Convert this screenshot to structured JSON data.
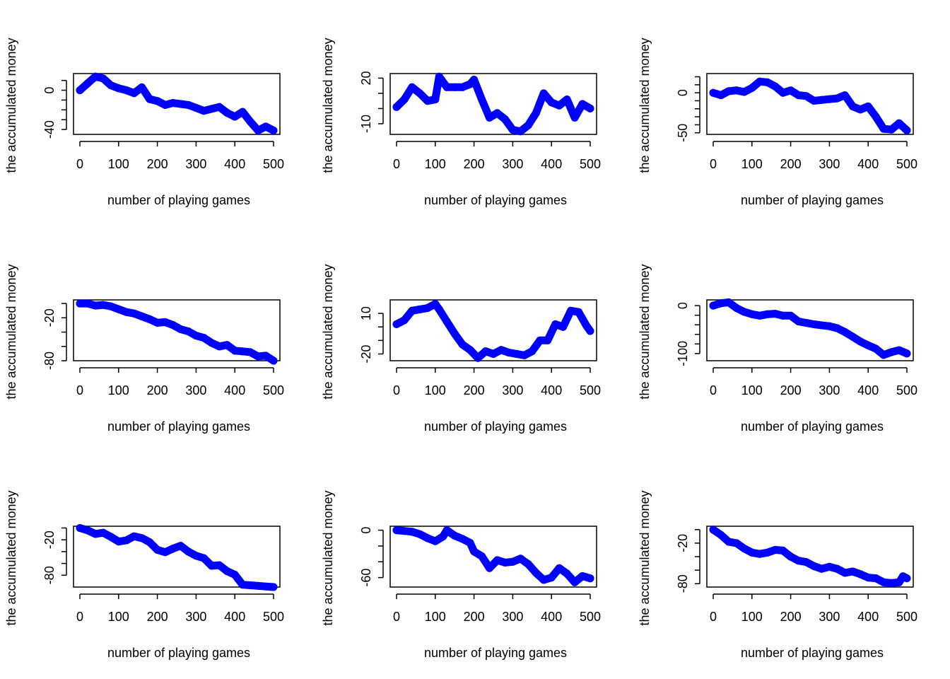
{
  "figure": {
    "series_color": "#0000ff",
    "axis_color": "#000000"
  },
  "chart_data": [
    {
      "type": "line",
      "xlabel": "number of playing games",
      "ylabel": "the accumulated money",
      "xlim": [
        0,
        500
      ],
      "ylim": [
        -45,
        17
      ],
      "x_ticks": [
        0,
        100,
        200,
        300,
        400,
        500
      ],
      "y_ticks": [
        -40,
        -30,
        -20,
        -10,
        0,
        10
      ],
      "y_tick_labels": [
        "-40",
        "",
        "",
        "",
        "0",
        ""
      ],
      "x": [
        0,
        20,
        40,
        60,
        80,
        100,
        120,
        140,
        160,
        180,
        200,
        220,
        240,
        260,
        280,
        300,
        320,
        340,
        360,
        380,
        400,
        420,
        440,
        460,
        480,
        500
      ],
      "y": [
        0,
        7,
        14,
        12,
        5,
        2,
        0,
        -3,
        3,
        -9,
        -11,
        -15,
        -13,
        -14,
        -15,
        -18,
        -21,
        -19,
        -17,
        -23,
        -27,
        -22,
        -32,
        -41,
        -37,
        -41
      ]
    },
    {
      "type": "line",
      "xlabel": "number of playing games",
      "ylabel": "the accumulated money",
      "xlim": [
        0,
        500
      ],
      "ylim": [
        -17,
        23
      ],
      "x_ticks": [
        0,
        100,
        200,
        300,
        400,
        500
      ],
      "y_ticks": [
        -10,
        0,
        10,
        20
      ],
      "y_tick_labels": [
        "-10",
        "",
        "",
        "20"
      ],
      "x": [
        0,
        20,
        40,
        60,
        80,
        100,
        110,
        130,
        150,
        170,
        190,
        200,
        220,
        240,
        260,
        280,
        300,
        320,
        340,
        360,
        380,
        400,
        420,
        440,
        460,
        480,
        500
      ],
      "y": [
        1,
        6,
        14,
        10,
        5,
        6,
        21,
        14,
        14,
        14,
        16,
        19,
        6,
        -6,
        -3,
        -7,
        -14,
        -15,
        -11,
        -3,
        10,
        4,
        2,
        6,
        -6,
        3,
        0
      ]
    },
    {
      "type": "line",
      "xlabel": "number of playing games",
      "ylabel": "the accumulated money",
      "xlim": [
        0,
        500
      ],
      "ylim": [
        -52,
        24
      ],
      "x_ticks": [
        0,
        100,
        200,
        300,
        400,
        500
      ],
      "y_ticks": [
        -50,
        -40,
        -30,
        -20,
        -10,
        0,
        10,
        20
      ],
      "y_tick_labels": [
        "-50",
        "",
        "",
        "",
        "",
        "0",
        "",
        ""
      ],
      "x": [
        0,
        20,
        40,
        60,
        80,
        100,
        120,
        140,
        160,
        180,
        200,
        220,
        240,
        260,
        280,
        300,
        320,
        340,
        360,
        380,
        400,
        420,
        440,
        460,
        480,
        500
      ],
      "y": [
        0,
        -3,
        2,
        3,
        1,
        6,
        14,
        13,
        8,
        0,
        3,
        -3,
        -4,
        -10,
        -9,
        -8,
        -7,
        -3,
        -17,
        -21,
        -17,
        -30,
        -45,
        -46,
        -38,
        -47
      ]
    },
    {
      "type": "line",
      "xlabel": "number of playing games",
      "ylabel": "the accumulated money",
      "xlim": [
        0,
        500
      ],
      "ylim": [
        -80,
        5
      ],
      "x_ticks": [
        0,
        100,
        200,
        300,
        400,
        500
      ],
      "y_ticks": [
        -80,
        -60,
        -40,
        -20,
        0
      ],
      "y_tick_labels": [
        "-80",
        "",
        "",
        "-20",
        ""
      ],
      "x": [
        0,
        20,
        40,
        60,
        80,
        100,
        120,
        140,
        160,
        180,
        200,
        220,
        240,
        260,
        280,
        300,
        320,
        340,
        360,
        380,
        400,
        420,
        440,
        460,
        480,
        500
      ],
      "y": [
        0,
        0,
        -3,
        -2,
        -4,
        -8,
        -12,
        -14,
        -18,
        -22,
        -27,
        -26,
        -30,
        -36,
        -39,
        -45,
        -48,
        -55,
        -60,
        -58,
        -66,
        -67,
        -68,
        -74,
        -73,
        -80
      ]
    },
    {
      "type": "line",
      "xlabel": "number of playing games",
      "ylabel": "the accumulated money",
      "xlim": [
        0,
        500
      ],
      "ylim": [
        -25,
        20
      ],
      "x_ticks": [
        0,
        100,
        200,
        300,
        400,
        500
      ],
      "y_ticks": [
        -20,
        -10,
        0,
        10
      ],
      "y_tick_labels": [
        "-20",
        "",
        "",
        "10"
      ],
      "x": [
        0,
        20,
        40,
        60,
        80,
        100,
        110,
        130,
        150,
        170,
        190,
        210,
        230,
        250,
        270,
        290,
        310,
        330,
        350,
        370,
        390,
        410,
        430,
        450,
        470,
        490,
        500
      ],
      "y": [
        2,
        5,
        12,
        13,
        14,
        17,
        13,
        4,
        -5,
        -13,
        -17,
        -23,
        -18,
        -20,
        -17,
        -19,
        -20,
        -21,
        -18,
        -10,
        -10,
        2,
        0,
        12,
        11,
        1,
        -3
      ]
    },
    {
      "type": "line",
      "xlabel": "number of playing games",
      "ylabel": "the accumulated money",
      "xlim": [
        0,
        500
      ],
      "ylim": [
        -115,
        12
      ],
      "x_ticks": [
        0,
        100,
        200,
        300,
        400,
        500
      ],
      "y_ticks": [
        -100,
        -80,
        -60,
        -40,
        -20,
        0
      ],
      "y_tick_labels": [
        "-100",
        "",
        "",
        "",
        "",
        "0"
      ],
      "x": [
        0,
        20,
        40,
        60,
        80,
        100,
        120,
        140,
        160,
        180,
        200,
        220,
        240,
        260,
        280,
        300,
        320,
        340,
        360,
        380,
        400,
        420,
        440,
        460,
        480,
        500
      ],
      "y": [
        0,
        5,
        7,
        -5,
        -13,
        -18,
        -21,
        -18,
        -17,
        -21,
        -21,
        -33,
        -36,
        -39,
        -41,
        -43,
        -47,
        -55,
        -65,
        -75,
        -83,
        -90,
        -103,
        -97,
        -93,
        -100
      ]
    },
    {
      "type": "line",
      "xlabel": "number of playing games",
      "ylabel": "the accumulated money",
      "xlim": [
        0,
        500
      ],
      "ylim": [
        -100,
        3
      ],
      "x_ticks": [
        0,
        100,
        200,
        300,
        400,
        500
      ],
      "y_ticks": [
        -80,
        -60,
        -40,
        -20,
        0
      ],
      "y_tick_labels": [
        "-80",
        "",
        "",
        "-20",
        ""
      ],
      "x": [
        0,
        20,
        40,
        60,
        80,
        100,
        120,
        140,
        160,
        180,
        200,
        220,
        240,
        260,
        280,
        300,
        320,
        340,
        360,
        380,
        400,
        420,
        440,
        460,
        480,
        500
      ],
      "y": [
        0,
        -4,
        -10,
        -8,
        -15,
        -23,
        -21,
        -14,
        -17,
        -24,
        -37,
        -41,
        -35,
        -30,
        -40,
        -47,
        -51,
        -64,
        -63,
        -73,
        -79,
        -96,
        -97,
        -98,
        -99,
        -100
      ]
    },
    {
      "type": "line",
      "xlabel": "number of playing games",
      "ylabel": "the accumulated money",
      "xlim": [
        0,
        500
      ],
      "ylim": [
        -72,
        5
      ],
      "x_ticks": [
        0,
        100,
        200,
        300,
        400,
        500
      ],
      "y_ticks": [
        -60,
        -40,
        -20,
        0
      ],
      "y_tick_labels": [
        "-60",
        "",
        "",
        "0"
      ],
      "x": [
        0,
        20,
        40,
        60,
        80,
        100,
        120,
        130,
        150,
        170,
        190,
        200,
        220,
        240,
        260,
        280,
        300,
        320,
        340,
        360,
        380,
        400,
        420,
        440,
        460,
        480,
        500
      ],
      "y": [
        0,
        -1,
        -2,
        -5,
        -10,
        -14,
        -8,
        0,
        -7,
        -11,
        -16,
        -27,
        -33,
        -48,
        -38,
        -41,
        -40,
        -36,
        -43,
        -54,
        -63,
        -60,
        -48,
        -55,
        -66,
        -58,
        -61
      ]
    },
    {
      "type": "line",
      "xlabel": "number of playing games",
      "ylabel": "the accumulated money",
      "xlim": [
        0,
        500
      ],
      "ylim": [
        -85,
        5
      ],
      "x_ticks": [
        0,
        100,
        200,
        300,
        400,
        500
      ],
      "y_ticks": [
        -80,
        -60,
        -40,
        -20,
        0
      ],
      "y_tick_labels": [
        "-80",
        "",
        "",
        "-20",
        ""
      ],
      "x": [
        0,
        20,
        40,
        60,
        80,
        100,
        120,
        140,
        160,
        180,
        200,
        220,
        240,
        260,
        280,
        300,
        320,
        340,
        360,
        380,
        400,
        420,
        440,
        460,
        480,
        490,
        500
      ],
      "y": [
        0,
        -8,
        -18,
        -20,
        -28,
        -34,
        -36,
        -34,
        -30,
        -31,
        -40,
        -46,
        -48,
        -54,
        -58,
        -55,
        -58,
        -64,
        -62,
        -66,
        -71,
        -72,
        -78,
        -79,
        -78,
        -69,
        -72
      ]
    }
  ]
}
